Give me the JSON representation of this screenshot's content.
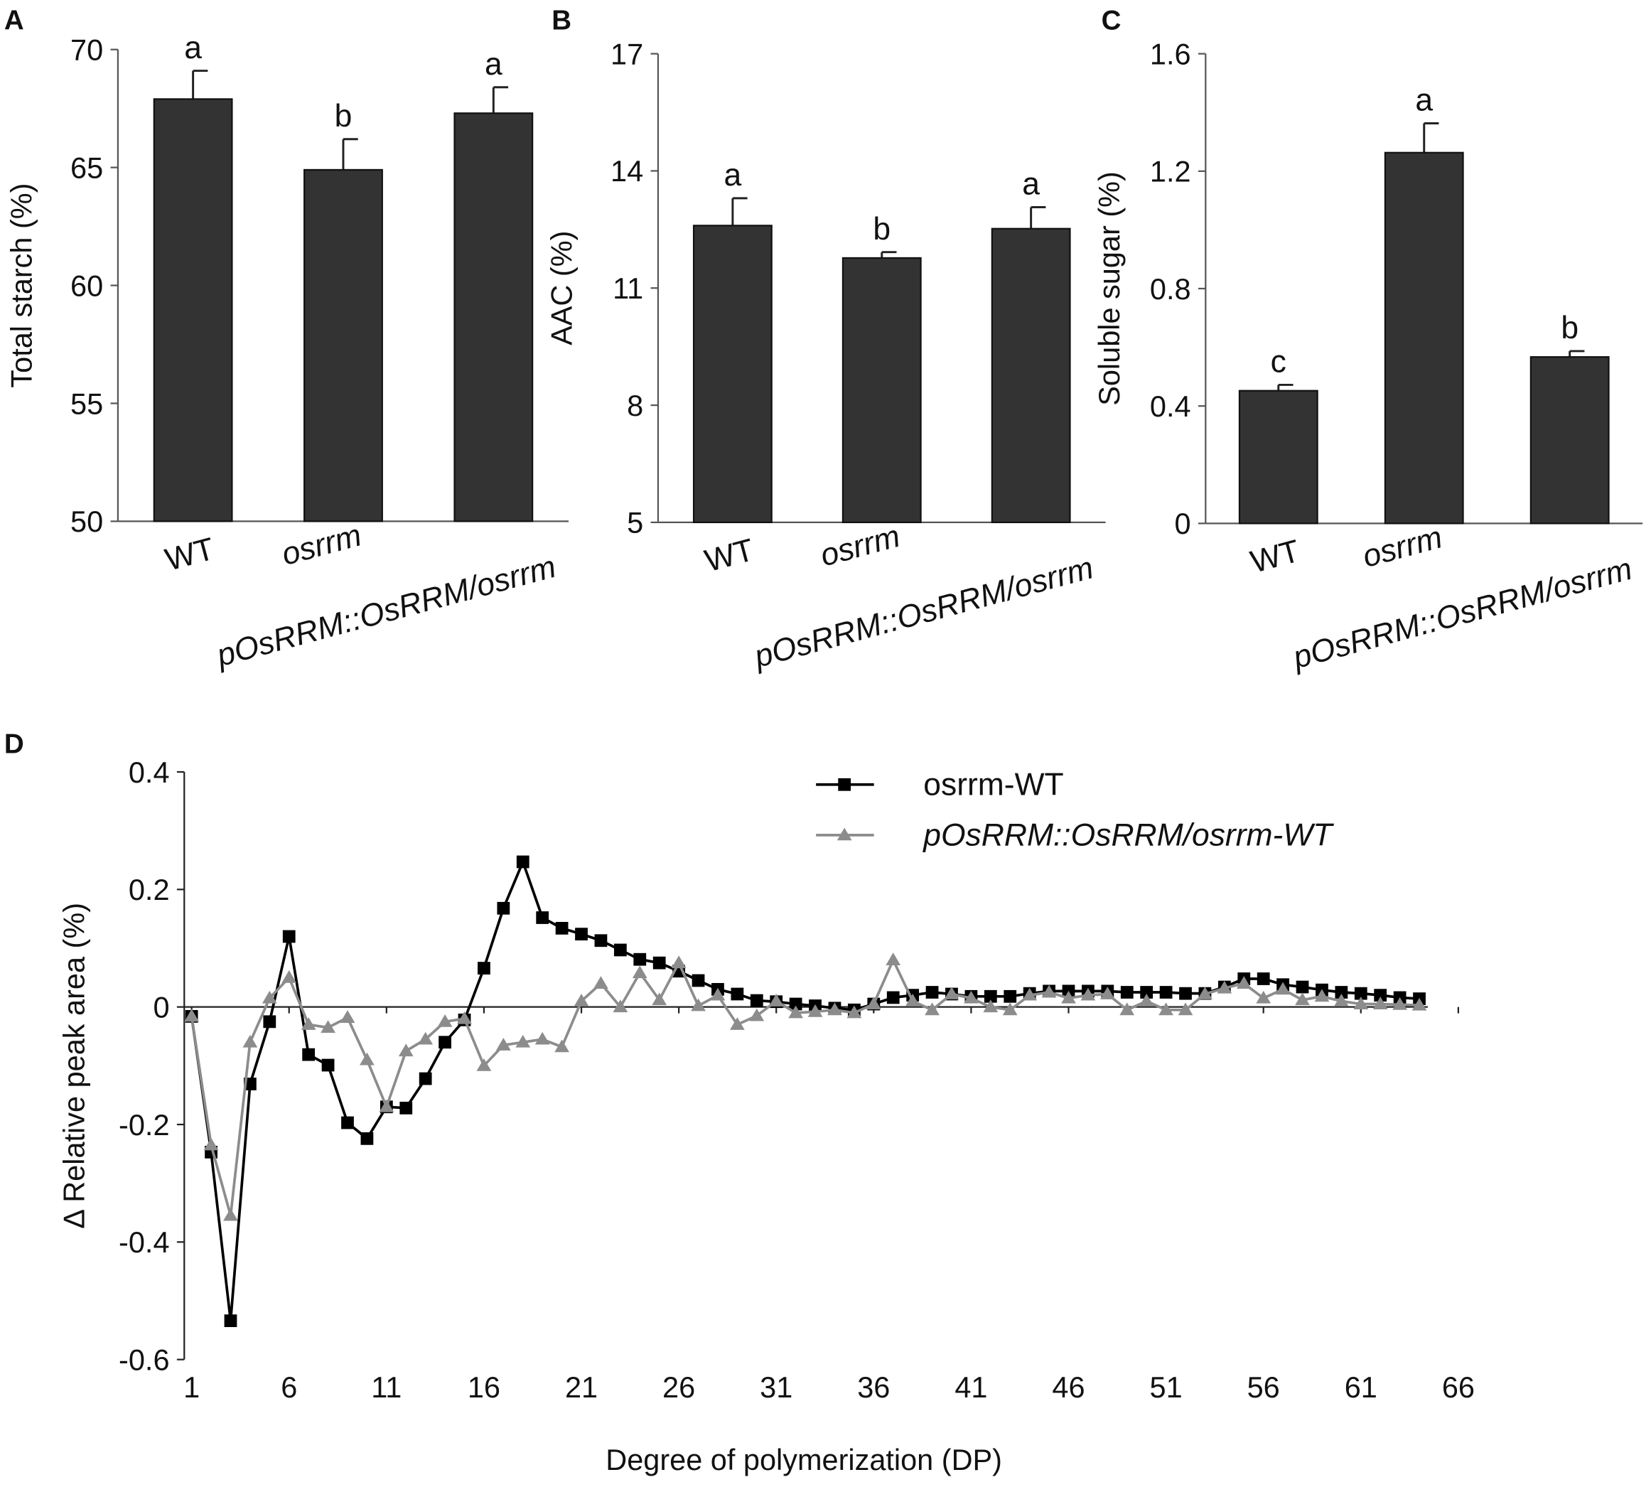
{
  "chart_data": [
    {
      "type": "bar",
      "label": "A",
      "ylabel": "Total starch (%)",
      "categories": [
        "WT",
        "osrrm",
        "pOsRRM::OsRRM/osrrm"
      ],
      "values": [
        67.9,
        64.9,
        67.3
      ],
      "errors": [
        1.2,
        1.3,
        1.1
      ],
      "letters": [
        "a",
        "b",
        "a"
      ],
      "color": "#333333",
      "ylim": [
        50,
        70
      ],
      "yticks": [
        50,
        55,
        60,
        65,
        70
      ]
    },
    {
      "type": "bar",
      "label": "B",
      "ylabel": "AAC (%)",
      "categories": [
        "WT",
        "osrrm",
        "pOsRRM::OsRRM/osrrm"
      ],
      "values": [
        12.6,
        11.77,
        12.52
      ],
      "errors": [
        0.7,
        0.15,
        0.55
      ],
      "letters": [
        "a",
        "b",
        "a"
      ],
      "color": "#333333",
      "ylim": [
        5,
        17
      ],
      "yticks": [
        5,
        8,
        11,
        14,
        17
      ]
    },
    {
      "type": "bar",
      "label": "C",
      "ylabel": "Soluble sugar (%)",
      "categories": [
        "WT",
        "osrrm",
        "pOsRRM::OsRRM/osrrm"
      ],
      "values": [
        0.452,
        1.263,
        0.567
      ],
      "errors": [
        0.02,
        0.1,
        0.02
      ],
      "letters": [
        "c",
        "a",
        "b"
      ],
      "color": "#333333",
      "ylim": [
        0,
        1.6
      ],
      "yticks": [
        0,
        0.4,
        0.8,
        1.2,
        1.6
      ]
    },
    {
      "type": "line",
      "label": "D",
      "ylabel": "Δ Relative peak area (%)",
      "xlabel": "Degree of polymerization (DP)",
      "x": [
        1,
        2,
        3,
        4,
        5,
        6,
        7,
        8,
        9,
        10,
        11,
        12,
        13,
        14,
        15,
        16,
        17,
        18,
        19,
        20,
        21,
        22,
        23,
        24,
        25,
        26,
        27,
        28,
        29,
        30,
        31,
        32,
        33,
        34,
        35,
        36,
        37,
        38,
        39,
        40,
        41,
        42,
        43,
        44,
        45,
        46,
        47,
        48,
        49,
        50,
        51,
        52,
        53,
        54,
        55,
        56,
        57,
        58,
        59,
        60,
        61,
        62,
        63,
        64
      ],
      "series": [
        {
          "name": "osrrm-WT",
          "color": "#000000",
          "marker": "square",
          "values": [
            -0.016,
            -0.247,
            -0.534,
            -0.131,
            -0.025,
            0.12,
            -0.081,
            -0.099,
            -0.197,
            -0.224,
            -0.17,
            -0.172,
            -0.122,
            -0.06,
            -0.022,
            0.066,
            0.168,
            0.247,
            0.152,
            0.134,
            0.124,
            0.113,
            0.097,
            0.081,
            0.075,
            0.061,
            0.045,
            0.03,
            0.022,
            0.011,
            0.009,
            0.005,
            0.002,
            -0.002,
            -0.005,
            0.005,
            0.016,
            0.02,
            0.025,
            0.022,
            0.018,
            0.018,
            0.018,
            0.023,
            0.027,
            0.027,
            0.027,
            0.027,
            0.025,
            0.025,
            0.025,
            0.023,
            0.023,
            0.034,
            0.048,
            0.048,
            0.038,
            0.034,
            0.029,
            0.025,
            0.023,
            0.02,
            0.016,
            0.014
          ]
        },
        {
          "name": "pOsRRM::OsRRM/osrrm-WT",
          "color": "#8c8c8c",
          "marker": "triangle",
          "values": [
            -0.016,
            -0.235,
            -0.355,
            -0.06,
            0.015,
            0.05,
            -0.03,
            -0.035,
            -0.018,
            -0.09,
            -0.17,
            -0.075,
            -0.055,
            -0.025,
            -0.02,
            -0.1,
            -0.065,
            -0.06,
            -0.055,
            -0.068,
            0.01,
            0.04,
            0.0,
            0.058,
            0.012,
            0.075,
            0.002,
            0.02,
            -0.03,
            -0.015,
            0.01,
            -0.01,
            -0.008,
            -0.005,
            -0.01,
            0.005,
            0.08,
            0.01,
            -0.005,
            0.022,
            0.015,
            0.0,
            -0.005,
            0.02,
            0.025,
            0.015,
            0.02,
            0.022,
            -0.005,
            0.01,
            -0.005,
            -0.005,
            0.022,
            0.032,
            0.04,
            0.015,
            0.03,
            0.012,
            0.018,
            0.01,
            0.005,
            0.005,
            0.004,
            0.003
          ]
        }
      ],
      "xlim": [
        1,
        66
      ],
      "xticks": [
        1,
        6,
        11,
        16,
        21,
        26,
        31,
        36,
        41,
        46,
        51,
        56,
        61,
        66
      ],
      "ylim": [
        -0.6,
        0.4
      ],
      "yticks": [
        -0.6,
        -0.4,
        -0.2,
        0,
        0.2,
        0.4
      ],
      "legend": "top-right"
    }
  ]
}
